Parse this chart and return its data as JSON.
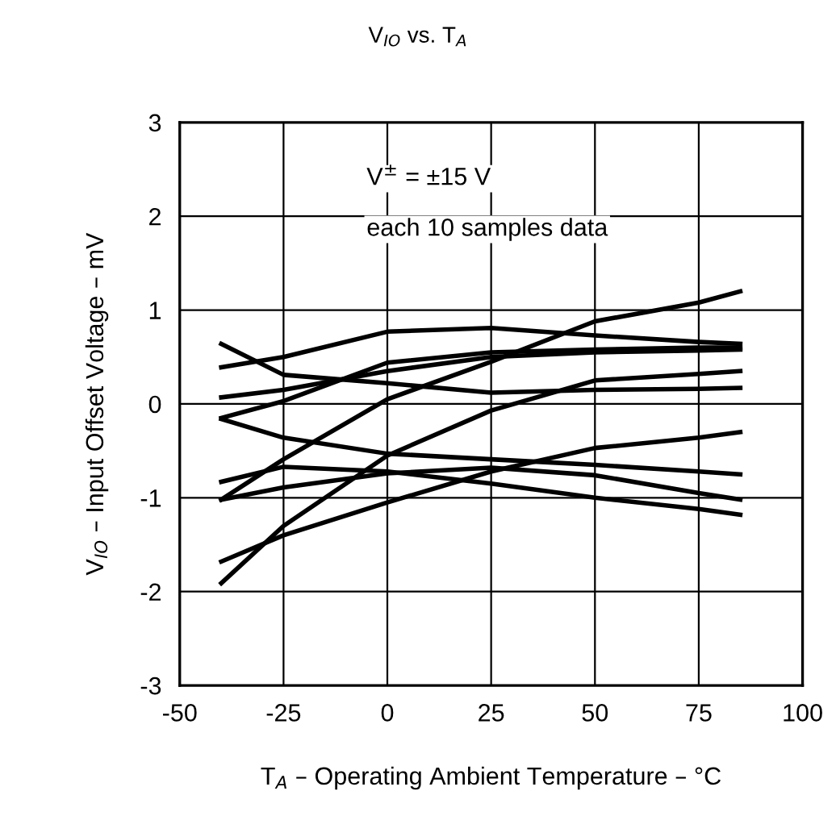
{
  "chart_data": {
    "type": "line",
    "title": "V$_{IO}$ vs. T$_{A}$",
    "xlabel": "T$_{A}$ – Operating Ambient Temperature – °C",
    "ylabel": "V$_{IO}$ – Input Offset Voltage – mV",
    "x": [
      -40,
      -25,
      0,
      25,
      50,
      75,
      85
    ],
    "series": [
      {
        "color": "#000000",
        "values": [
          0.39,
          0.5,
          0.77,
          0.81,
          0.73,
          0.66,
          0.64
        ]
      },
      {
        "color": "#000000",
        "values": [
          -1.02,
          -0.59,
          0.05,
          0.45,
          0.88,
          1.08,
          1.2
        ]
      },
      {
        "color": "#000000",
        "values": [
          -0.15,
          0.03,
          0.44,
          0.55,
          0.58,
          0.6,
          0.6
        ]
      },
      {
        "color": "#000000",
        "values": [
          0.64,
          0.31,
          0.22,
          0.12,
          0.15,
          0.16,
          0.17
        ]
      },
      {
        "color": "#000000",
        "values": [
          0.07,
          0.15,
          0.35,
          0.5,
          0.55,
          0.57,
          0.58
        ]
      },
      {
        "color": "#000000",
        "values": [
          -0.16,
          -0.36,
          -0.53,
          -0.59,
          -0.65,
          -0.72,
          -0.75
        ]
      },
      {
        "color": "#000000",
        "values": [
          -0.83,
          -0.67,
          -0.72,
          -0.85,
          -1.0,
          -1.12,
          -1.18
        ]
      },
      {
        "color": "#000000",
        "values": [
          -1.68,
          -1.4,
          -1.05,
          -0.72,
          -0.47,
          -0.36,
          -0.3
        ]
      },
      {
        "color": "#000000",
        "values": [
          -1.91,
          -1.3,
          -0.55,
          -0.07,
          0.25,
          0.32,
          0.35
        ]
      },
      {
        "color": "#000000",
        "values": [
          -1.02,
          -0.89,
          -0.74,
          -0.68,
          -0.76,
          -0.95,
          -1.02
        ]
      }
    ],
    "xlim": [
      -50,
      100
    ],
    "xticks": [
      -50,
      -25,
      0,
      25,
      50,
      75,
      100
    ],
    "ylim": [
      -3,
      3
    ],
    "yticks": [
      -3,
      -2,
      -1,
      0,
      1,
      2,
      3
    ],
    "grid": true,
    "annotations": [
      "V$^{±}$ = ±15 V",
      "each 10 samples data"
    ]
  }
}
